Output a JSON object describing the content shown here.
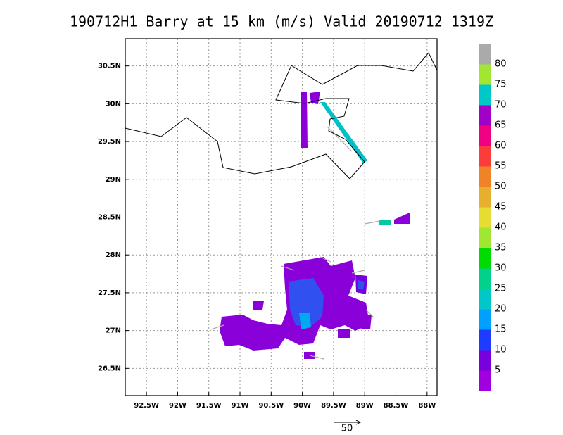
{
  "chart_data": {
    "type": "vector-map",
    "title": "190712H1 Barry at 15 km (m/s) Valid 20190712 1319Z",
    "xlim": [
      -92.84,
      -87.84
    ],
    "ylim": [
      26.14,
      30.86
    ],
    "xticks": [
      {
        "value": -92.5,
        "label": "92.5W"
      },
      {
        "value": -92,
        "label": "92W"
      },
      {
        "value": -91.5,
        "label": "91.5W"
      },
      {
        "value": -91,
        "label": "91W"
      },
      {
        "value": -90.5,
        "label": "90.5W"
      },
      {
        "value": -90,
        "label": "90W"
      },
      {
        "value": -89.5,
        "label": "89.5W"
      },
      {
        "value": -89,
        "label": "89W"
      },
      {
        "value": -88.5,
        "label": "88.5W"
      },
      {
        "value": -88,
        "label": "88W"
      }
    ],
    "yticks": [
      {
        "value": 26.5,
        "label": "26.5N"
      },
      {
        "value": 27,
        "label": "27N"
      },
      {
        "value": 27.5,
        "label": "27.5N"
      },
      {
        "value": 28,
        "label": "28N"
      },
      {
        "value": 28.5,
        "label": "28.5N"
      },
      {
        "value": 29,
        "label": "29N"
      },
      {
        "value": 29.5,
        "label": "29.5N"
      },
      {
        "value": 30,
        "label": "30N"
      },
      {
        "value": 30.5,
        "label": "30.5N"
      }
    ],
    "grid": true,
    "colorbar": {
      "range": [
        0,
        85
      ],
      "ticks": [
        5,
        10,
        15,
        20,
        25,
        30,
        35,
        40,
        45,
        50,
        55,
        60,
        65,
        70,
        75,
        80
      ],
      "colors": [
        "#a000e0",
        "#7800dc",
        "#1e3cff",
        "#00a0ff",
        "#00c8c8",
        "#00d28c",
        "#00dc00",
        "#a0e632",
        "#e6dc32",
        "#e6af2d",
        "#f08228",
        "#fa3c3c",
        "#f00082",
        "#a000c8",
        "#00c8c8",
        "#a0e632",
        "#aaaaaa"
      ]
    },
    "vector_key": 50
  }
}
